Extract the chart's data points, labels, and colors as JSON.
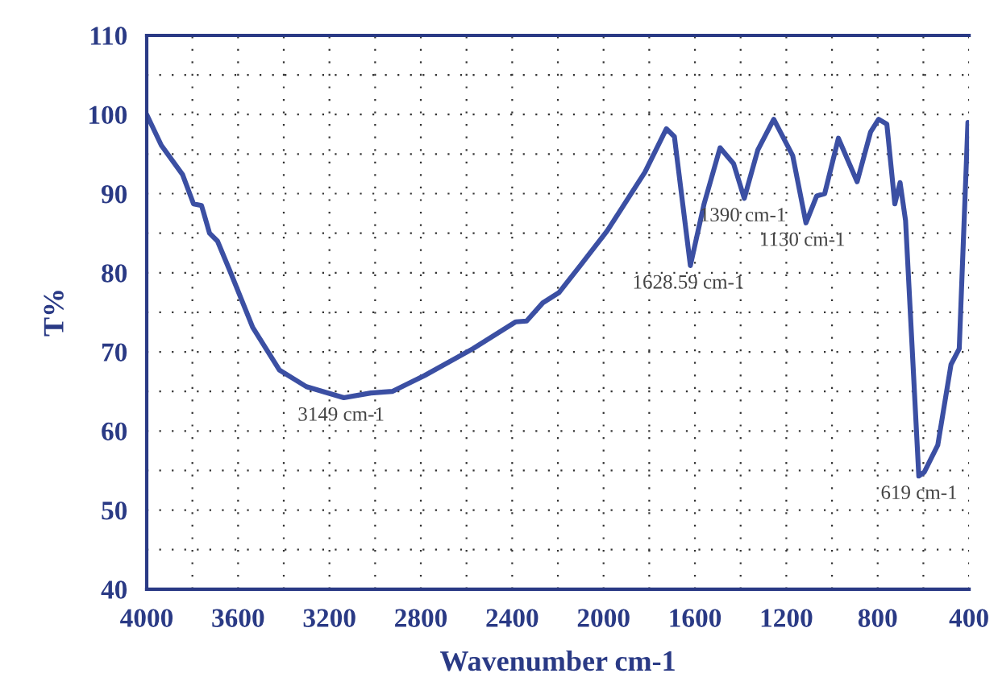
{
  "chart_data": {
    "type": "line",
    "xlabel": "Wavenumber cm-1",
    "ylabel": "T%",
    "xlim": [
      4000,
      400
    ],
    "xticks": [
      4000,
      3600,
      3200,
      2800,
      2400,
      2000,
      1600,
      1200,
      800,
      400
    ],
    "ylim": [
      40,
      110
    ],
    "yticks": [
      40,
      50,
      60,
      70,
      80,
      90,
      100,
      110
    ],
    "grid": true,
    "line_style": "solid",
    "marker": "none",
    "series": [
      {
        "color": "#3b4fa3",
        "x": [
          4000,
          3936,
          3843,
          3795,
          3760,
          3725,
          3690,
          3631,
          3536,
          3419,
          3301,
          3137,
          3019,
          2925,
          2784,
          2572,
          2384,
          2337,
          2266,
          2195,
          2102,
          1984,
          1819,
          1725,
          1690,
          1620,
          1560,
          1490,
          1431,
          1384,
          1325,
          1255,
          1172,
          1114,
          1067,
          1032,
          972,
          890,
          831,
          796,
          760,
          725,
          702,
          678,
          620,
          596,
          537,
          479,
          443,
          405,
          400
        ],
        "values": [
          100,
          96.1,
          92.4,
          88.7,
          88.5,
          85,
          84,
          79.9,
          73.1,
          67.7,
          65.6,
          64.2,
          64.8,
          65,
          67,
          70.4,
          73.8,
          73.9,
          76.2,
          77.5,
          80.9,
          85.3,
          92.7,
          98.2,
          97.2,
          80.9,
          88.7,
          95.8,
          93.8,
          89.4,
          95.5,
          99.4,
          94.8,
          86.3,
          89.7,
          90,
          97,
          91.5,
          97.8,
          99.4,
          98.8,
          88.7,
          91.4,
          86.6,
          54.3,
          54.8,
          58.2,
          68.4,
          70.4,
          99,
          95
        ]
      }
    ],
    "annotations": [
      {
        "text": "3149 cm-1",
        "x": 3149,
        "y": 64.2
      },
      {
        "text": "1628.59 cm-1",
        "x": 1628.59,
        "y": 80.9
      },
      {
        "text": "1390 cm-1",
        "x": 1390,
        "y": 89.4
      },
      {
        "text": "1130 cm-1",
        "x": 1130,
        "y": 86.3
      },
      {
        "text": "619 cm-1",
        "x": 619,
        "y": 54.3
      }
    ]
  }
}
